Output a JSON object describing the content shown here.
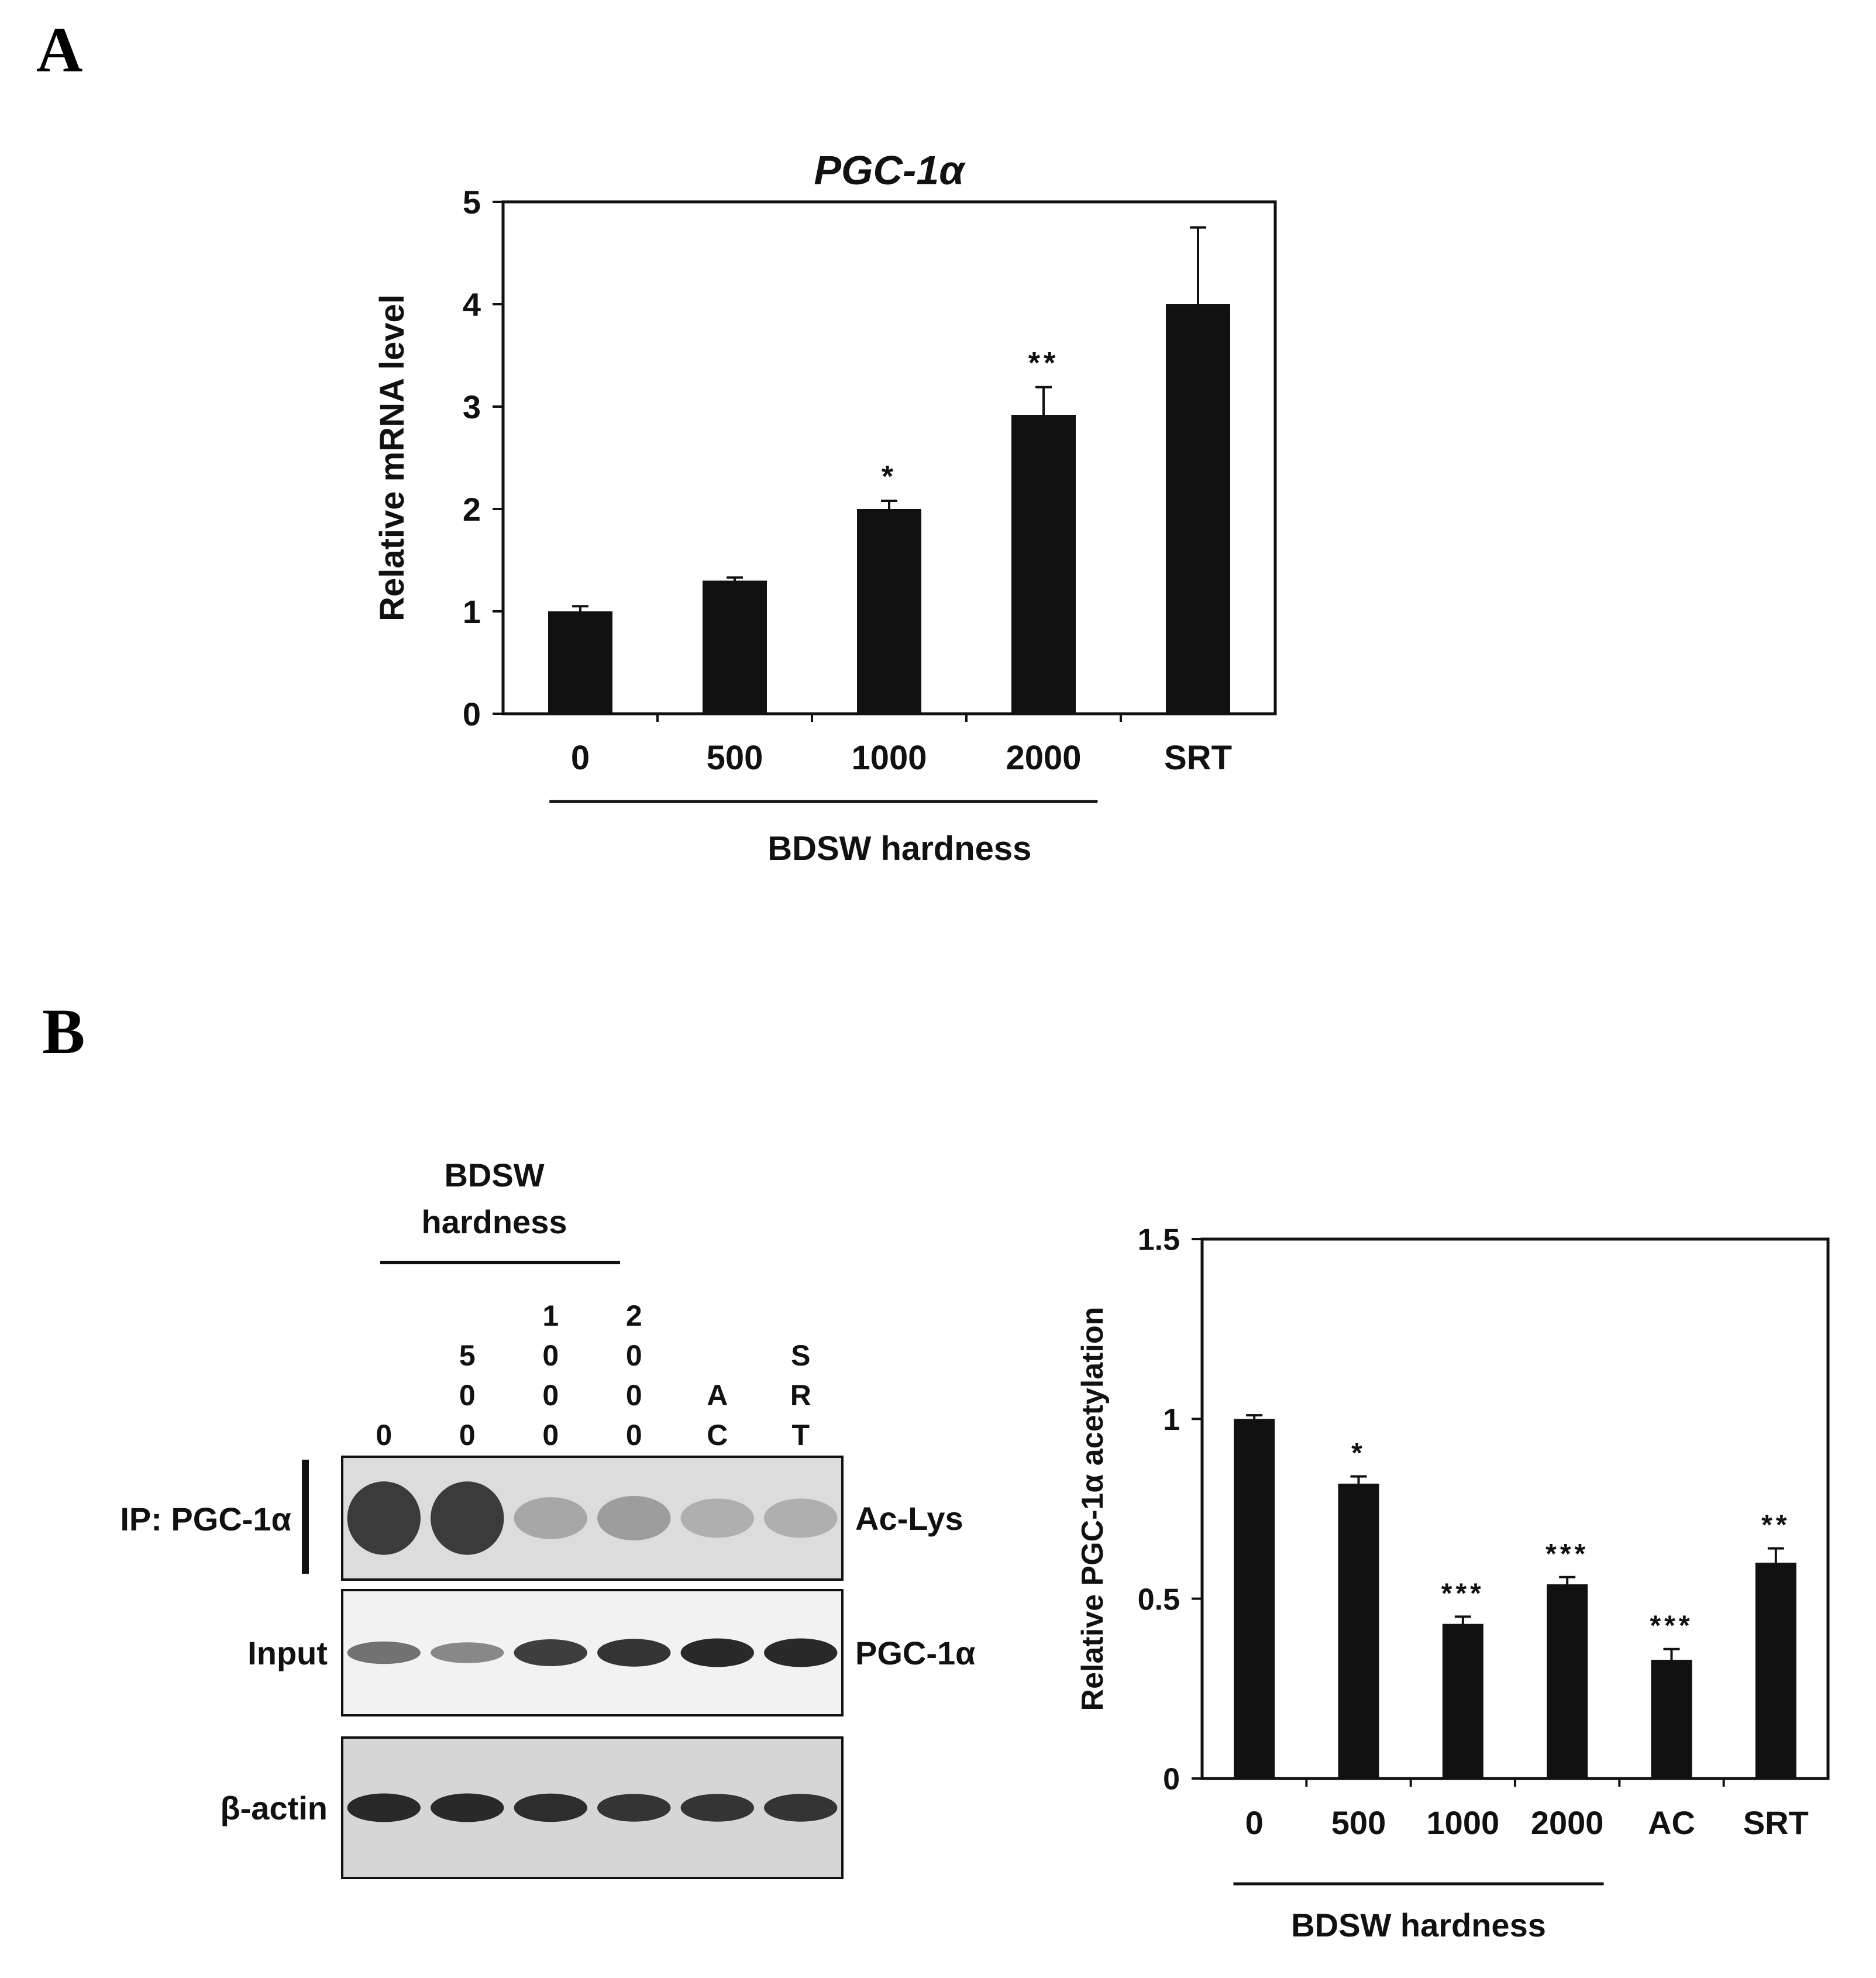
{
  "panel_a": {
    "letter": "A"
  },
  "panel_b": {
    "letter": "B",
    "blot": {
      "group_header": [
        "BDSW",
        "hardness"
      ],
      "lanes": [
        {
          "label": [
            "0"
          ]
        },
        {
          "label": [
            "5",
            "0",
            "0"
          ]
        },
        {
          "label": [
            "1",
            "0",
            "0",
            "0"
          ]
        },
        {
          "label": [
            "2",
            "0",
            "0",
            "0"
          ]
        },
        {
          "label": [
            "A",
            "C"
          ]
        },
        {
          "label": [
            "S",
            "R",
            "T"
          ]
        }
      ],
      "ip_label": "IP: PGC-1α",
      "rows": [
        {
          "left": "",
          "right": "Ac-Lys",
          "intensity": [
            0.95,
            0.95,
            0.35,
            0.4,
            0.3,
            0.3
          ]
        },
        {
          "left": "Input",
          "right": "PGC-1α",
          "intensity": [
            0.55,
            0.45,
            0.8,
            0.85,
            0.9,
            0.9
          ]
        },
        {
          "left": "β-actin",
          "right": "",
          "intensity": [
            0.9,
            0.9,
            0.88,
            0.85,
            0.85,
            0.85
          ]
        }
      ]
    }
  },
  "chart_data": [
    {
      "type": "bar",
      "title": "PGC-1α",
      "categories": [
        "0",
        "500",
        "1000",
        "2000",
        "SRT"
      ],
      "values": [
        1.0,
        1.3,
        2.0,
        2.92,
        4.0
      ],
      "errors": [
        0.05,
        0.03,
        0.08,
        0.27,
        0.75
      ],
      "significance": [
        "",
        "",
        "*",
        "**",
        ""
      ],
      "ylabel": "Relative mRNA level",
      "ylim": [
        0,
        5
      ],
      "yticks": [
        "0",
        "1",
        "2",
        "3",
        "4",
        "5"
      ],
      "group_label": "BDSW hardness",
      "group_span": [
        "0",
        "2000"
      ]
    },
    {
      "type": "bar",
      "categories": [
        "0",
        "500",
        "1000",
        "2000",
        "AC",
        "SRT"
      ],
      "values": [
        1.0,
        0.82,
        0.43,
        0.54,
        0.33,
        0.6
      ],
      "errors": [
        0.01,
        0.02,
        0.02,
        0.02,
        0.03,
        0.04
      ],
      "significance": [
        "",
        "*",
        "***",
        "***",
        "***",
        "**"
      ],
      "ylabel": "Relative PGC-1α acetylation",
      "ylim": [
        0,
        1.5
      ],
      "yticks": [
        "0",
        "0.5",
        "1",
        "1.5"
      ],
      "group_label": "BDSW hardness",
      "group_span": [
        "0",
        "2000"
      ]
    }
  ]
}
